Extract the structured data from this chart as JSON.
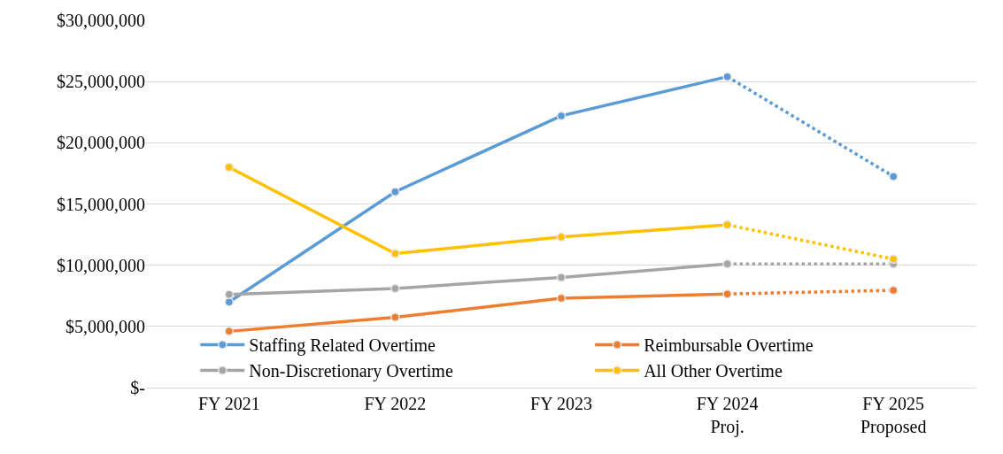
{
  "chart_data": {
    "type": "line",
    "categories": [
      "FY 2021",
      "FY 2022",
      "FY 2023",
      "FY 2024\nProj.",
      "FY 2025\nProposed"
    ],
    "series": [
      {
        "name": "Staffing Related Overtime",
        "color": "#5b9bd5",
        "line_style": [
          "solid",
          "solid",
          "solid",
          "dotted"
        ],
        "values": [
          7000000,
          16000000,
          22200000,
          25400000,
          17250000
        ]
      },
      {
        "name": "Reimbursable Overtime",
        "color": "#ed7d31",
        "line_style": [
          "solid",
          "solid",
          "solid",
          "dotted"
        ],
        "values": [
          4600000,
          5750000,
          7300000,
          7650000,
          7950000
        ]
      },
      {
        "name": "Non-Discretionary Overtime",
        "color": "#a5a5a5",
        "line_style": [
          "solid",
          "solid",
          "solid",
          "dotted"
        ],
        "values": [
          7600000,
          8100000,
          9000000,
          10100000,
          10100000
        ]
      },
      {
        "name": "All Other Overtime",
        "color": "#ffc000",
        "line_style": [
          "solid",
          "solid",
          "solid",
          "dotted"
        ],
        "values": [
          18000000,
          10950000,
          12300000,
          13300000,
          10500000
        ]
      }
    ],
    "ylim": [
      0,
      30000000
    ],
    "yticks": [
      {
        "value": 0,
        "label": "$-"
      },
      {
        "value": 5000000,
        "label": "$5,000,000"
      },
      {
        "value": 10000000,
        "label": "$10,000,000"
      },
      {
        "value": 15000000,
        "label": "$15,000,000"
      },
      {
        "value": 20000000,
        "label": "$20,000,000"
      },
      {
        "value": 25000000,
        "label": "$25,000,000"
      },
      {
        "value": 30000000,
        "label": "$30,000,000"
      }
    ],
    "grid": "y",
    "legend": "bottom",
    "marker": "circle"
  }
}
